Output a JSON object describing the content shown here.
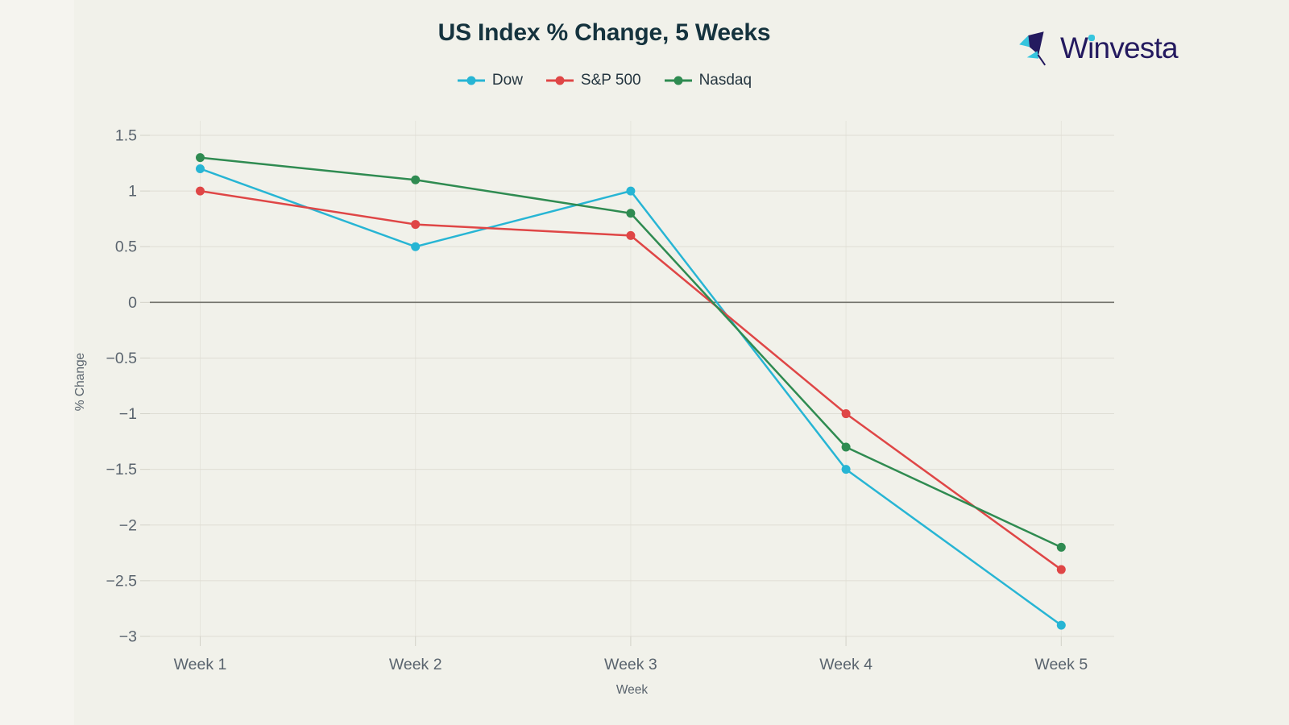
{
  "page": {
    "background": "#f1f1ea",
    "left_strip_background": "#f5f4ef"
  },
  "header": {
    "title": "US Index % Change, 5 Weeks"
  },
  "logo": {
    "text": "Winvesta",
    "navy": "#241a5f",
    "cyan": "#36c5de"
  },
  "chart_data": {
    "type": "line",
    "title": "US Index % Change, 5 Weeks",
    "x": [
      "Week 1",
      "Week 2",
      "Week 3",
      "Week 4",
      "Week 5"
    ],
    "xlabel": "Week",
    "ylabel": "% Change",
    "ylim": [
      -3,
      1.5
    ],
    "grid": true,
    "zero_line": true,
    "legend_position": "top-center",
    "yticks": [
      {
        "value": 1.5,
        "label": "1.5"
      },
      {
        "value": 1,
        "label": "1"
      },
      {
        "value": 0.5,
        "label": "0.5"
      },
      {
        "value": 0,
        "label": "0"
      },
      {
        "value": -0.5,
        "label": "−0.5"
      },
      {
        "value": -1,
        "label": "−1"
      },
      {
        "value": -1.5,
        "label": "−1.5"
      },
      {
        "value": -2,
        "label": "−2"
      },
      {
        "value": -2.5,
        "label": "−2.5"
      },
      {
        "value": -3,
        "label": "−3"
      }
    ],
    "series": [
      {
        "name": "Dow",
        "color": "#27b5d4",
        "values": [
          1.2,
          0.5,
          1.0,
          -1.5,
          -2.9
        ]
      },
      {
        "name": "S&P 500",
        "color": "#df4646",
        "values": [
          1.0,
          0.7,
          0.6,
          -1.0,
          -2.4
        ]
      },
      {
        "name": "Nasdaq",
        "color": "#2f8b51",
        "values": [
          1.3,
          1.1,
          0.8,
          -1.3,
          -2.2
        ]
      }
    ]
  }
}
